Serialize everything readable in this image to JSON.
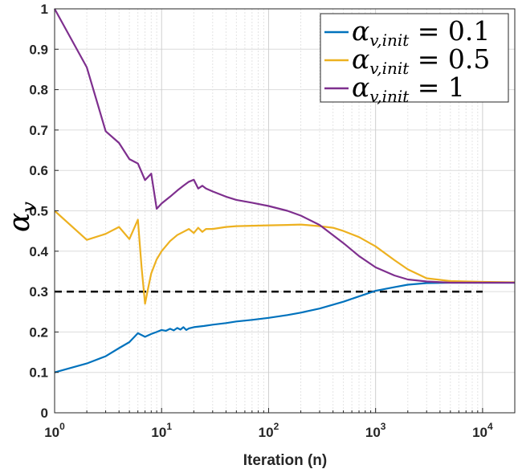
{
  "chart_data": {
    "type": "line",
    "xscale": "log",
    "xlim": [
      1,
      20000
    ],
    "ylim": [
      0,
      1
    ],
    "xlabel": "Iteration (n)",
    "ylabel": "αv",
    "ylabel_main": "α",
    "ylabel_sub": "v",
    "grid": true,
    "legend_position": "top-right",
    "yticks": [
      "0",
      "0.1",
      "0.2",
      "0.3",
      "0.4",
      "0.5",
      "0.6",
      "0.7",
      "0.8",
      "0.9",
      "1"
    ],
    "xticks": [
      {
        "base": "10",
        "exp": "0"
      },
      {
        "base": "10",
        "exp": "1"
      },
      {
        "base": "10",
        "exp": "2"
      },
      {
        "base": "10",
        "exp": "3"
      },
      {
        "base": "10",
        "exp": "4"
      }
    ],
    "reference_line": {
      "y": 0.3,
      "style": "dashed",
      "color": "#000000"
    },
    "series": [
      {
        "name": "αv,init = 0.1",
        "legend_main": "α",
        "legend_sub": "v,init",
        "legend_value": " = 0.1",
        "color": "#0072BD",
        "x": [
          1,
          2,
          3,
          4,
          5,
          6,
          7,
          8,
          9,
          10,
          11,
          12,
          13,
          14,
          15,
          16,
          17,
          18,
          20,
          25,
          30,
          40,
          50,
          70,
          100,
          150,
          200,
          300,
          500,
          700,
          1000,
          1500,
          2000,
          3000,
          5000,
          10000,
          20000
        ],
        "y": [
          0.1,
          0.122,
          0.14,
          0.16,
          0.175,
          0.197,
          0.188,
          0.195,
          0.2,
          0.205,
          0.203,
          0.208,
          0.204,
          0.21,
          0.206,
          0.212,
          0.205,
          0.209,
          0.212,
          0.215,
          0.218,
          0.222,
          0.226,
          0.23,
          0.235,
          0.242,
          0.248,
          0.258,
          0.275,
          0.288,
          0.302,
          0.311,
          0.317,
          0.321,
          0.322,
          0.322,
          0.322
        ]
      },
      {
        "name": "αv,init = 0.5",
        "legend_main": "α",
        "legend_sub": "v,init",
        "legend_value": " = 0.5",
        "color": "#EDB120",
        "x": [
          1,
          2,
          3,
          4,
          5,
          6,
          6.5,
          7,
          7.5,
          8,
          9,
          10,
          12,
          14,
          16,
          18,
          20,
          22,
          24,
          26,
          30,
          40,
          50,
          70,
          100,
          150,
          200,
          300,
          400,
          500,
          700,
          1000,
          1500,
          2000,
          3000,
          5000,
          10000,
          20000
        ],
        "y": [
          0.5,
          0.428,
          0.443,
          0.46,
          0.43,
          0.478,
          0.36,
          0.27,
          0.31,
          0.345,
          0.38,
          0.4,
          0.425,
          0.44,
          0.448,
          0.455,
          0.445,
          0.458,
          0.448,
          0.455,
          0.455,
          0.46,
          0.462,
          0.463,
          0.464,
          0.465,
          0.466,
          0.462,
          0.458,
          0.45,
          0.435,
          0.412,
          0.378,
          0.355,
          0.333,
          0.326,
          0.324,
          0.323
        ]
      },
      {
        "name": "αv,init = 1",
        "legend_main": "α",
        "legend_sub": "v,init",
        "legend_value": " = 1",
        "color": "#7E2F8E",
        "x": [
          1,
          2,
          3,
          4,
          5,
          6,
          7,
          8,
          9,
          10,
          12,
          14,
          16,
          18,
          20,
          22,
          24,
          26,
          30,
          40,
          50,
          70,
          100,
          150,
          200,
          300,
          500,
          700,
          1000,
          1500,
          2000,
          3000,
          5000,
          10000,
          20000
        ],
        "y": [
          1.0,
          0.855,
          0.697,
          0.668,
          0.628,
          0.617,
          0.576,
          0.592,
          0.505,
          0.518,
          0.535,
          0.55,
          0.562,
          0.572,
          0.577,
          0.555,
          0.562,
          0.555,
          0.548,
          0.535,
          0.527,
          0.52,
          0.512,
          0.5,
          0.488,
          0.465,
          0.42,
          0.388,
          0.36,
          0.34,
          0.33,
          0.325,
          0.322,
          0.322,
          0.322
        ]
      }
    ]
  }
}
